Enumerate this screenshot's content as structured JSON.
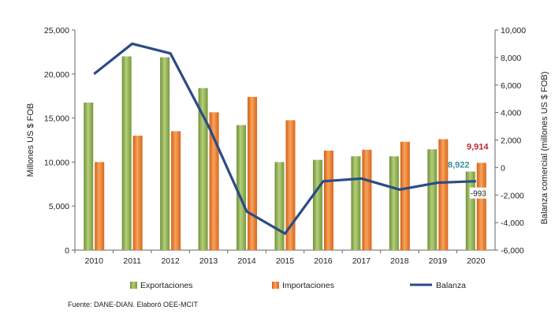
{
  "chart_data": {
    "type": "bar+line",
    "categories": [
      "2010",
      "2011",
      "2012",
      "2013",
      "2014",
      "2015",
      "2016",
      "2017",
      "2018",
      "2019",
      "2020"
    ],
    "series": [
      {
        "name": "Exportaciones",
        "type": "bar",
        "axis": "left",
        "color": "#8fb04e",
        "values": [
          16750,
          22000,
          21900,
          18400,
          14200,
          10000,
          10250,
          10650,
          10650,
          11450,
          8922
        ]
      },
      {
        "name": "Importaciones",
        "type": "bar",
        "axis": "left",
        "color": "#ee7a22",
        "values": [
          10000,
          13000,
          13500,
          15650,
          17400,
          14750,
          11300,
          11400,
          12300,
          12600,
          9914
        ]
      },
      {
        "name": "Balanza",
        "type": "line",
        "axis": "right",
        "color": "#2b4b86",
        "values": [
          6800,
          9000,
          8300,
          3000,
          -3200,
          -4800,
          -1000,
          -800,
          -1600,
          -1100,
          -993
        ]
      }
    ],
    "ylabel": "Millones  US $  FOB",
    "y2label": "Balanza comercial (millones  US $  FOB)",
    "ylim": [
      0,
      25000
    ],
    "y2lim": [
      -6000,
      10000
    ],
    "yticks": [
      "25,000",
      "20,000",
      "15,000",
      "10,000",
      "5,000",
      "0"
    ],
    "y2ticks": [
      "10,000",
      "8,000",
      "6,000",
      "4,000",
      "2,000",
      "0",
      "-2,000",
      "-4,000",
      "-6,000"
    ],
    "grid": false,
    "legend_placement": "bottom",
    "annotations": [
      {
        "text": "9,914",
        "color": "#c0282d",
        "series": "Importaciones",
        "index": 10
      },
      {
        "text": "8,922",
        "color": "#3a8fa0",
        "series": "Exportaciones",
        "index": 10
      },
      {
        "text": "-993",
        "color": "#222222",
        "series": "Balanza",
        "index": 10
      }
    ],
    "source": "Fuente: DANE-DIAN. Elaboró OEE-MCIT"
  }
}
